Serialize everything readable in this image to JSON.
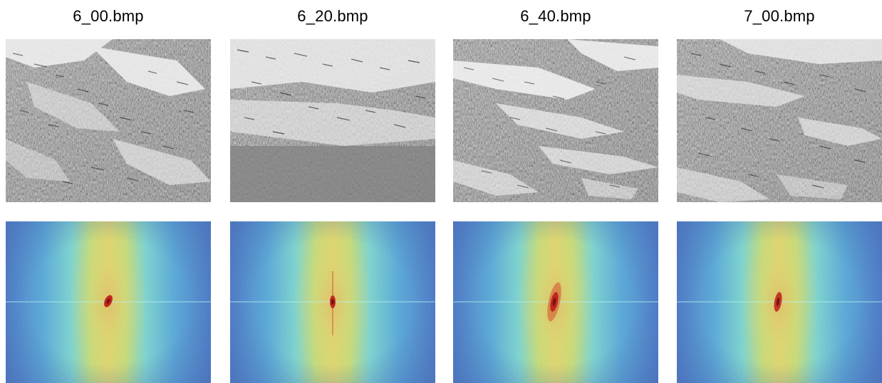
{
  "panels": [
    {
      "filename": "6_00.bmp"
    },
    {
      "filename": "6_20.bmp"
    },
    {
      "filename": "6_40.bmp"
    },
    {
      "filename": "7_00.bmp"
    }
  ],
  "colors": {
    "background": "#ffffff",
    "photo_base": "#8a8a8a",
    "whitecap": "#f2f2f2",
    "spectrum_low": "#1f6fd6",
    "spectrum_mid": "#4fd8e8",
    "spectrum_high": "#f0e04a",
    "spectrum_peak": "#c0281f"
  }
}
